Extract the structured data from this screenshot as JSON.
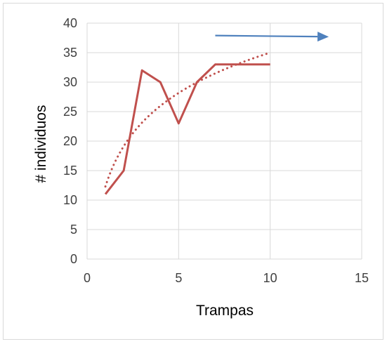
{
  "chart_data": {
    "type": "scatter",
    "xlabel": "Trampas",
    "ylabel": "# individuos",
    "xlim": [
      0,
      15
    ],
    "ylim": [
      0,
      40
    ],
    "xticks": [
      0,
      5,
      10,
      15
    ],
    "yticks": [
      0,
      5,
      10,
      15,
      20,
      25,
      30,
      35,
      40
    ],
    "grid": true,
    "legend": "none",
    "series": [
      {
        "style": "line",
        "color": "#c0504d",
        "x": [
          1,
          2,
          3,
          4,
          5,
          6,
          7,
          8,
          9,
          10
        ],
        "y": [
          11,
          15,
          32,
          30,
          23,
          30,
          33,
          33,
          33,
          33
        ]
      },
      {
        "style": "dotted-trendline-logarithmic",
        "color": "#c0504d",
        "x": [
          1,
          10
        ],
        "y": [
          12.3,
          35
        ]
      }
    ],
    "annotations": [
      {
        "type": "arrow",
        "color": "#4f81bd",
        "from": [
          7,
          37.9
        ],
        "to": [
          13.2,
          37.7
        ]
      }
    ]
  }
}
